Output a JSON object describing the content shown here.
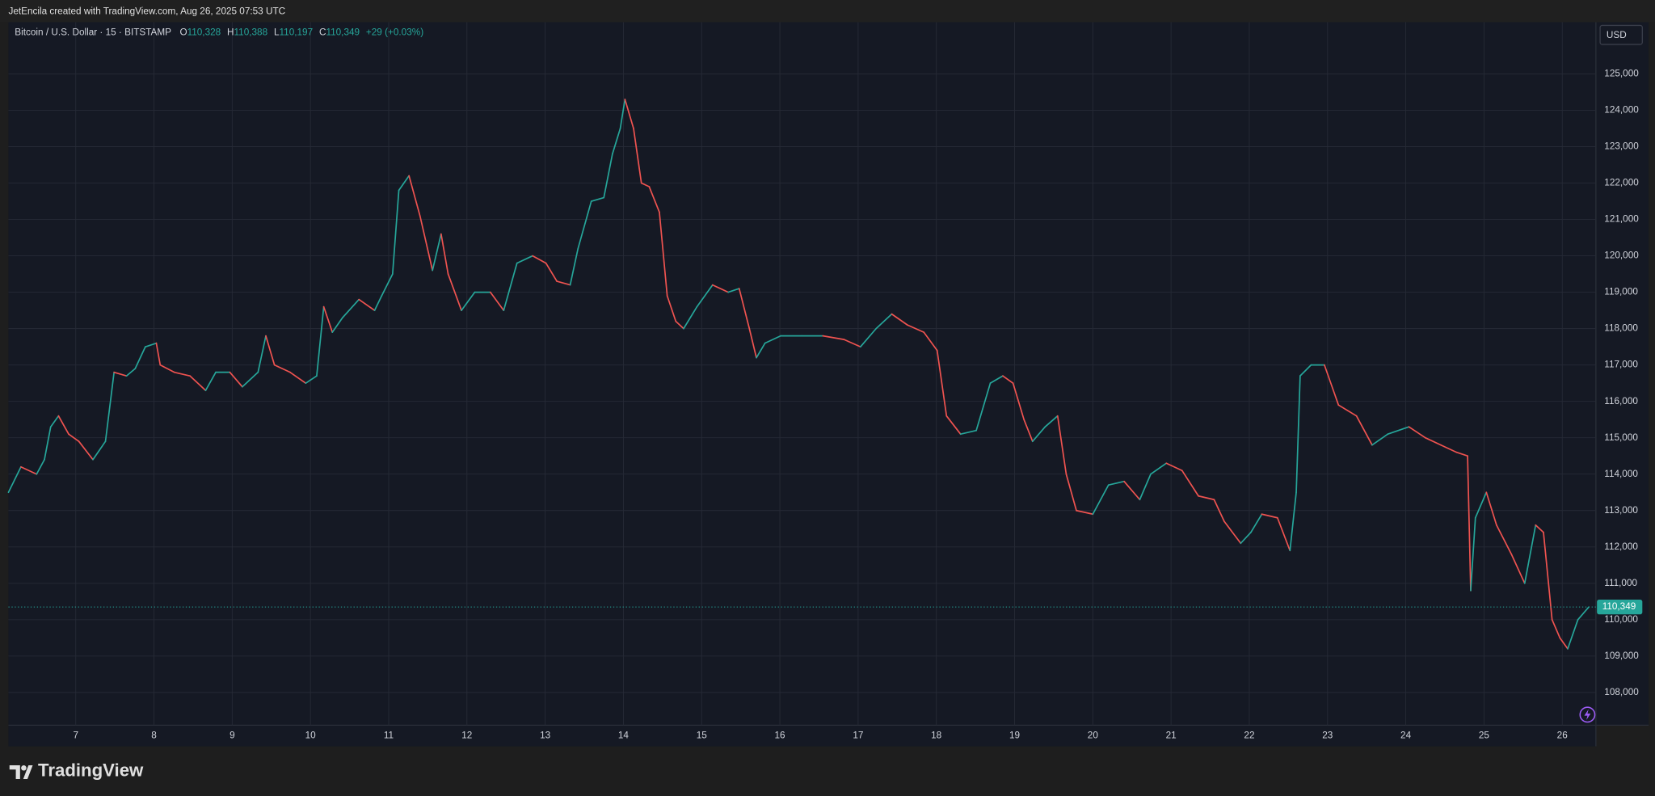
{
  "chart_data": {
    "type": "line",
    "attribution": "JetEncila created with TradingView.com, Aug 26, 2025 07:53 UTC",
    "title": "Bitcoin / U.S. Dollar · 15 · BITSTAMP",
    "ohlc": [
      {
        "key": "O",
        "value": 110328,
        "label": "110,328"
      },
      {
        "key": "H",
        "value": 110388,
        "label": "110,388"
      },
      {
        "key": "L",
        "value": 110197,
        "label": "110,197"
      },
      {
        "key": "C",
        "value": 110349,
        "label": "110,349"
      }
    ],
    "change": {
      "value": 29,
      "label": "+29 (+0.03%)"
    },
    "currency": "USD",
    "brand": "TradingView",
    "up_color": "#26a69a",
    "down_color": "#ef5350",
    "grid": true,
    "x": [
      6.14,
      6.3,
      6.5,
      6.6,
      6.68,
      6.78,
      6.91,
      7.04,
      7.22,
      7.38,
      7.49,
      7.65,
      7.76,
      7.89,
      8.03,
      8.08,
      8.26,
      8.46,
      8.66,
      8.79,
      8.97,
      9.13,
      9.33,
      9.43,
      9.54,
      9.74,
      9.94,
      10.08,
      10.17,
      10.28,
      10.41,
      10.62,
      10.82,
      10.91,
      11.05,
      11.13,
      11.26,
      11.4,
      11.56,
      11.67,
      11.76,
      11.93,
      12.1,
      12.3,
      12.47,
      12.64,
      12.84,
      13.01,
      13.15,
      13.32,
      13.42,
      13.59,
      13.75,
      13.86,
      13.96,
      14.02,
      14.13,
      14.23,
      14.33,
      14.46,
      14.56,
      14.67,
      14.77,
      14.94,
      15.14,
      15.34,
      15.48,
      15.61,
      15.7,
      15.81,
      16.01,
      16.28,
      16.55,
      16.82,
      17.03,
      17.23,
      17.43,
      17.63,
      17.84,
      18.01,
      18.13,
      18.31,
      18.51,
      18.69,
      18.85,
      18.98,
      19.12,
      19.23,
      19.39,
      19.55,
      19.66,
      19.79,
      20.0,
      20.2,
      20.4,
      20.6,
      20.74,
      20.94,
      21.14,
      21.35,
      21.55,
      21.68,
      21.89,
      22.02,
      22.16,
      22.36,
      22.52,
      22.6,
      22.65,
      22.79,
      22.96,
      23.14,
      23.37,
      23.57,
      23.77,
      24.04,
      24.25,
      24.45,
      24.65,
      24.79,
      24.83,
      24.89,
      25.03,
      25.16,
      25.35,
      25.52,
      25.66,
      25.76,
      25.87,
      25.97,
      26.07,
      26.2,
      26.34
    ],
    "values": [
      113500,
      114200,
      114000,
      114400,
      115300,
      115600,
      115100,
      114900,
      114400,
      114900,
      116800,
      116700,
      116900,
      117500,
      117600,
      117000,
      116800,
      116700,
      116300,
      116800,
      116800,
      116400,
      116800,
      117800,
      117000,
      116800,
      116500,
      116700,
      118600,
      117900,
      118300,
      118800,
      118500,
      118900,
      119500,
      121800,
      122200,
      121100,
      119600,
      120600,
      119500,
      118500,
      119000,
      119000,
      118500,
      119800,
      120000,
      119800,
      119300,
      119200,
      120200,
      121500,
      121600,
      122800,
      123500,
      124300,
      123500,
      122000,
      121900,
      121200,
      118900,
      118200,
      118000,
      118600,
      119200,
      119000,
      119100,
      118000,
      117200,
      117600,
      117800,
      117800,
      117800,
      117700,
      117500,
      118000,
      118400,
      118100,
      117900,
      117400,
      115600,
      115100,
      115200,
      116500,
      116700,
      116500,
      115500,
      114900,
      115300,
      115600,
      114000,
      113000,
      112900,
      113700,
      113800,
      113300,
      114000,
      114300,
      114100,
      113400,
      113300,
      112700,
      112100,
      112400,
      112900,
      112800,
      111900,
      113500,
      116700,
      117000,
      117000,
      115900,
      115600,
      114800,
      115100,
      115300,
      115000,
      114800,
      114600,
      114500,
      110800,
      112800,
      113500,
      112600,
      111800,
      111000,
      112600,
      112400,
      110000,
      109500,
      109200,
      110000,
      110349
    ],
    "last_price": {
      "value": 110349,
      "label": "110,349"
    },
    "xlim": [
      6.14,
      26.43
    ],
    "xticks": [
      7,
      8,
      9,
      10,
      11,
      12,
      13,
      14,
      15,
      16,
      17,
      18,
      19,
      20,
      21,
      22,
      23,
      24,
      25,
      26
    ],
    "ylim": [
      107100,
      126420
    ],
    "yticks": [
      {
        "value": 108000,
        "label": "108,000"
      },
      {
        "value": 109000,
        "label": "109,000"
      },
      {
        "value": 110000,
        "label": "110,000"
      },
      {
        "value": 111000,
        "label": "111,000"
      },
      {
        "value": 112000,
        "label": "112,000"
      },
      {
        "value": 113000,
        "label": "113,000"
      },
      {
        "value": 114000,
        "label": "114,000"
      },
      {
        "value": 115000,
        "label": "115,000"
      },
      {
        "value": 116000,
        "label": "116,000"
      },
      {
        "value": 117000,
        "label": "117,000"
      },
      {
        "value": 118000,
        "label": "118,000"
      },
      {
        "value": 119000,
        "label": "119,000"
      },
      {
        "value": 120000,
        "label": "120,000"
      },
      {
        "value": 121000,
        "label": "121,000"
      },
      {
        "value": 122000,
        "label": "122,000"
      },
      {
        "value": 123000,
        "label": "123,000"
      },
      {
        "value": 124000,
        "label": "124,000"
      },
      {
        "value": 125000,
        "label": "125,000"
      }
    ]
  }
}
